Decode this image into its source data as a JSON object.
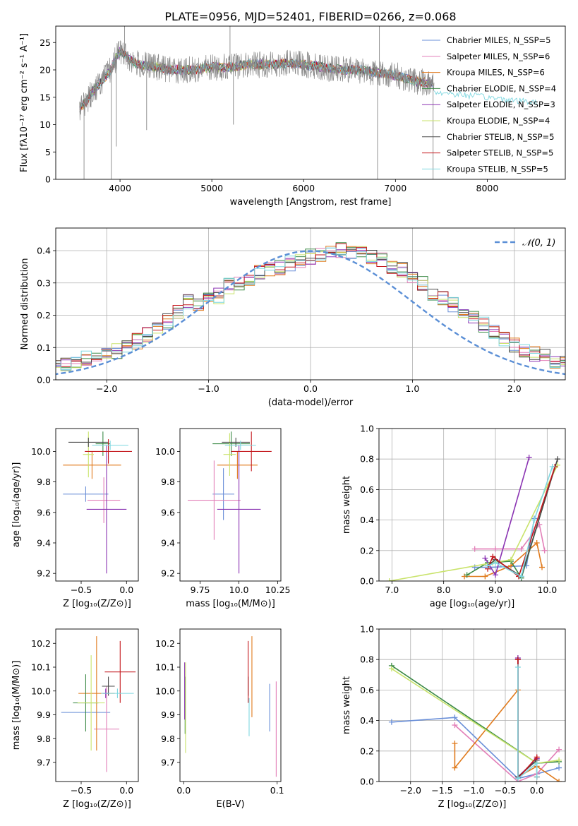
{
  "figure_title": "PLATE=0956, MJD=52401, FIBERID=0266, z=0.068",
  "colors": {
    "Chabrier MILES": "#6a8fd8",
    "Salpeter MILES": "#e27fb8",
    "Kroupa MILES": "#e07a1c",
    "Chabrier ELODIE": "#3b8a46",
    "Salpeter ELODIE": "#8b35b3",
    "Kroupa ELODIE": "#c9e36b",
    "Chabrier STELIB": "#4a4a4a",
    "Salpeter STELIB": "#c4171c",
    "Kroupa STELIB": "#7fd7e0",
    "data": "#888888",
    "normal": "#5b8fd6"
  },
  "chart_data": [
    {
      "id": "spectrum",
      "type": "line",
      "title": "PLATE=0956, MJD=52401, FIBERID=0266, z=0.068",
      "xlabel": "wavelength [Angstrom, rest frame]",
      "ylabel": "Flux [fλ10⁻¹⁷ erg cm⁻² s⁻¹ A⁻¹]",
      "xlim": [
        3300,
        8850
      ],
      "ylim": [
        0,
        28
      ],
      "xticks": [
        4000,
        5000,
        6000,
        7000,
        8000
      ],
      "yticks": [
        0,
        5,
        10,
        15,
        20,
        25
      ],
      "legend_position": "top-right",
      "legend": [
        "Chabrier MILES, N_SSP=5",
        "Salpeter MILES, N_SSP=6",
        "Kroupa MILES, N_SSP=6",
        "Chabrier ELODIE, N_SSP=4",
        "Salpeter ELODIE, N_SSP=3",
        "Kroupa ELODIE, N_SSP=4",
        "Chabrier STELIB, N_SSP=5",
        "Salpeter STELIB, N_SSP=5",
        "Kroupa STELIB, N_SSP=5"
      ],
      "continuum": {
        "x": [
          3560,
          3620,
          3700,
          3800,
          3900,
          3950,
          4000,
          4100,
          4200,
          4400,
          4600,
          4800,
          5000,
          5200,
          5400,
          5600,
          5800,
          6000,
          6200,
          6400,
          6600,
          6800,
          7000,
          7200,
          7400
        ],
        "y": [
          13,
          14,
          16,
          18,
          20,
          22,
          23.5,
          22,
          21,
          20.5,
          20,
          20,
          20.5,
          20.5,
          21,
          21,
          21.2,
          21,
          20.5,
          20,
          20,
          19.5,
          19,
          18,
          17.5
        ]
      },
      "spikes": [
        {
          "x": 3608,
          "y": 0
        },
        {
          "x": 3905,
          "y": 0
        },
        {
          "x": 3960,
          "y": 6
        },
        {
          "x": 4050,
          "y": 28
        },
        {
          "x": 4290,
          "y": 9
        },
        {
          "x": 5198,
          "y": 28
        },
        {
          "x": 5235,
          "y": 10
        },
        {
          "x": 6805,
          "y": 0
        },
        {
          "x": 6825,
          "y": 28
        },
        {
          "x": 7410,
          "y": 0
        }
      ]
    },
    {
      "id": "residuals",
      "type": "line",
      "xlabel": "(data-model)/error",
      "ylabel": "Normed distribution",
      "xlim": [
        -2.5,
        2.5
      ],
      "ylim": [
        0,
        0.47
      ],
      "xticks": [
        -2,
        -1,
        0,
        1,
        2
      ],
      "yticks": [
        0.0,
        0.1,
        0.2,
        0.3,
        0.4
      ],
      "grid": true,
      "legend_position": "top-right",
      "legend": [
        "𝒩(0, 1)"
      ],
      "bin_width": 0.1,
      "hist_values": [
        0.03,
        0.04,
        0.05,
        0.05,
        0.05,
        0.06,
        0.07,
        0.08,
        0.09,
        0.09,
        0.1,
        0.12,
        0.14,
        0.16,
        0.18,
        0.21,
        0.24,
        0.23,
        0.25,
        0.26,
        0.29,
        0.3,
        0.31,
        0.33,
        0.34,
        0.35,
        0.36,
        0.37,
        0.38,
        0.39,
        0.39,
        0.4,
        0.4,
        0.39,
        0.38,
        0.37,
        0.35,
        0.34,
        0.32,
        0.3,
        0.27,
        0.25,
        0.23,
        0.21,
        0.19,
        0.17,
        0.15,
        0.13,
        0.11,
        0.09,
        0.08,
        0.07,
        0.06,
        0.05,
        0.04,
        0.04,
        0.03
      ],
      "normal_curve": {
        "mu": 0,
        "sigma": 1
      }
    },
    {
      "id": "age_vs_Z",
      "type": "scatter",
      "xlabel": "Z [log₁₀(Z/Z⊙)]",
      "ylabel": "age  [log₁₀(age/yr)]",
      "xlim": [
        -0.78,
        0.13
      ],
      "ylim": [
        9.15,
        10.15
      ],
      "xticks": [
        -0.5,
        0.0
      ],
      "yticks": [
        9.2,
        9.4,
        9.6,
        9.8,
        10.0
      ],
      "points": [
        {
          "model": "Chabrier MILES",
          "x": -0.45,
          "y": 9.72,
          "xerr": 0.25,
          "yerr": 0.05
        },
        {
          "model": "Salpeter MILES",
          "x": -0.25,
          "y": 9.68,
          "xerr": 0.18,
          "yerr": 0.15
        },
        {
          "model": "Kroupa MILES",
          "x": -0.38,
          "y": 9.91,
          "xerr": 0.32,
          "yerr": 0.09
        },
        {
          "model": "Chabrier ELODIE",
          "x": -0.26,
          "y": 10.05,
          "xerr": 0.08,
          "yerr": 0.08
        },
        {
          "model": "Salpeter ELODIE",
          "x": -0.22,
          "y": 9.62,
          "xerr": 0.22,
          "yerr": 0.42
        },
        {
          "model": "Kroupa ELODIE",
          "x": -0.42,
          "y": 9.98,
          "xerr": 0.06,
          "yerr": 0.15
        },
        {
          "model": "Chabrier STELIB",
          "x": -0.42,
          "y": 10.06,
          "xerr": 0.22,
          "yerr": 0.03
        },
        {
          "model": "Salpeter STELIB",
          "x": -0.2,
          "y": 10.0,
          "xerr": 0.26,
          "yerr": 0.08
        },
        {
          "model": "Kroupa STELIB",
          "x": -0.18,
          "y": 10.04,
          "xerr": 0.2,
          "yerr": 0.03
        }
      ]
    },
    {
      "id": "age_vs_mass",
      "type": "scatter",
      "xlabel": "mass [log₁₀(M/M⊙)]",
      "ylabel": "",
      "xlim": [
        9.62,
        10.27
      ],
      "ylim": [
        9.15,
        10.15
      ],
      "xticks": [
        9.75,
        10.0,
        10.25
      ],
      "yticks": [
        9.2,
        9.4,
        9.6,
        9.8,
        10.0
      ],
      "points": [
        {
          "model": "Chabrier MILES",
          "x": 9.9,
          "y": 9.72,
          "xerr": 0.07,
          "yerr": 0.17
        },
        {
          "model": "Salpeter MILES",
          "x": 9.84,
          "y": 9.68,
          "xerr": 0.17,
          "yerr": 0.26
        },
        {
          "model": "Kroupa MILES",
          "x": 9.99,
          "y": 9.91,
          "xerr": 0.13,
          "yerr": 0.09
        },
        {
          "model": "Chabrier ELODIE",
          "x": 9.95,
          "y": 10.05,
          "xerr": 0.12,
          "yerr": 0.08
        },
        {
          "model": "Salpeter ELODIE",
          "x": 10.0,
          "y": 9.62,
          "xerr": 0.14,
          "yerr": 0.42
        },
        {
          "model": "Kroupa ELODIE",
          "x": 9.94,
          "y": 9.98,
          "xerr": 0.04,
          "yerr": 0.14
        },
        {
          "model": "Chabrier STELIB",
          "x": 9.98,
          "y": 10.06,
          "xerr": 0.09,
          "yerr": 0.03
        },
        {
          "model": "Salpeter STELIB",
          "x": 10.08,
          "y": 10.0,
          "xerr": 0.13,
          "yerr": 0.13
        },
        {
          "model": "Kroupa STELIB",
          "x": 10.01,
          "y": 10.04,
          "xerr": 0.1,
          "yerr": 0.03
        }
      ]
    },
    {
      "id": "massweight_vs_age",
      "type": "line",
      "xlabel": "age  [log₁₀(age/yr)]",
      "ylabel": "mass weight",
      "xlim": [
        6.75,
        10.35
      ],
      "ylim": [
        0,
        1
      ],
      "xticks": [
        7,
        8,
        9,
        10
      ],
      "yticks": [
        0.0,
        0.2,
        0.4,
        0.6,
        0.8,
        1.0
      ],
      "grid": true,
      "series": [
        {
          "model": "Chabrier MILES",
          "x": [
            8.6,
            8.9,
            9.6,
            9.75
          ],
          "y": [
            0.09,
            0.09,
            0.1,
            0.41
          ]
        },
        {
          "model": "Salpeter MILES",
          "x": [
            8.6,
            9.0,
            9.5,
            9.85,
            9.95
          ],
          "y": [
            0.21,
            0.21,
            0.21,
            0.37,
            0.2
          ]
        },
        {
          "model": "Kroupa MILES",
          "x": [
            8.4,
            8.8,
            9.3,
            9.8,
            9.9
          ],
          "y": [
            0.03,
            0.03,
            0.1,
            0.25,
            0.09
          ]
        },
        {
          "model": "Chabrier ELODIE",
          "x": [
            8.45,
            8.85,
            9.3,
            9.5,
            10.15
          ],
          "y": [
            0.04,
            0.12,
            0.13,
            0.02,
            0.75
          ]
        },
        {
          "model": "Salpeter ELODIE",
          "x": [
            8.8,
            9.0,
            9.65
          ],
          "y": [
            0.15,
            0.04,
            0.81
          ]
        },
        {
          "model": "Kroupa ELODIE",
          "x": [
            6.95,
            8.95,
            9.3,
            10.2
          ],
          "y": [
            0.0,
            0.12,
            0.14,
            0.76
          ]
        },
        {
          "model": "Chabrier STELIB",
          "x": [
            8.85,
            9.0,
            9.5,
            10.2
          ],
          "y": [
            0.1,
            0.14,
            0.03,
            0.8
          ]
        },
        {
          "model": "Salpeter STELIB",
          "x": [
            8.85,
            8.95,
            9.45,
            10.15
          ],
          "y": [
            0.08,
            0.16,
            0.03,
            0.75
          ]
        },
        {
          "model": "Kroupa STELIB",
          "x": [
            8.85,
            9.0,
            9.5,
            9.75,
            10.1
          ],
          "y": [
            0.1,
            0.12,
            0.03,
            0.4,
            0.75
          ]
        }
      ]
    },
    {
      "id": "mass_vs_Z",
      "type": "scatter",
      "xlabel": "Z [log₁₀(Z/Z⊙)]",
      "ylabel": "mass [log₁₀(M/M⊙)]",
      "xlim": [
        -0.78,
        0.13
      ],
      "ylim": [
        9.62,
        10.26
      ],
      "xticks": [
        -0.5,
        0.0
      ],
      "yticks": [
        9.7,
        9.8,
        9.9,
        10.0,
        10.1,
        10.2
      ],
      "points": [
        {
          "model": "Chabrier MILES",
          "x": -0.45,
          "y": 9.91,
          "xerr": 0.27,
          "yerr": 0.0
        },
        {
          "model": "Salpeter MILES",
          "x": -0.22,
          "y": 9.84,
          "xerr": 0.14,
          "yerr": 0.18
        },
        {
          "model": "Kroupa MILES",
          "x": -0.33,
          "y": 9.99,
          "xerr": 0.2,
          "yerr": 0.24
        },
        {
          "model": "Chabrier ELODIE",
          "x": -0.45,
          "y": 9.95,
          "xerr": 0.14,
          "yerr": 0.12
        },
        {
          "model": "Salpeter ELODIE",
          "x": -0.23,
          "y": 9.99,
          "xerr": 0.03,
          "yerr": 0.02
        },
        {
          "model": "Kroupa ELODIE",
          "x": -0.39,
          "y": 9.95,
          "xerr": 0.15,
          "yerr": 0.2
        },
        {
          "model": "Chabrier STELIB",
          "x": -0.2,
          "y": 10.02,
          "xerr": 0.07,
          "yerr": 0.04
        },
        {
          "model": "Salpeter STELIB",
          "x": -0.07,
          "y": 10.08,
          "xerr": 0.17,
          "yerr": 0.13
        },
        {
          "model": "Kroupa STELIB",
          "x": -0.1,
          "y": 9.99,
          "xerr": 0.18,
          "yerr": 0.02
        }
      ]
    },
    {
      "id": "mass_vs_ebv",
      "type": "scatter",
      "xlabel": "E(B-V)",
      "ylabel": "",
      "xlim": [
        -0.004,
        0.104
      ],
      "ylim": [
        9.62,
        10.26
      ],
      "xticks": [
        0.0,
        0.1
      ],
      "yticks": [
        9.7,
        9.8,
        9.9,
        10.0,
        10.1,
        10.2
      ],
      "points": [
        {
          "model": "Chabrier MILES",
          "x": 0.092,
          "y": 9.93,
          "xerr": 0,
          "yerr": 0.1
        },
        {
          "model": "Salpeter MILES",
          "x": 0.099,
          "y": 9.84,
          "xerr": 0,
          "yerr": 0.2
        },
        {
          "model": "Kroupa MILES",
          "x": 0.073,
          "y": 10.06,
          "xerr": 0,
          "yerr": 0.17
        },
        {
          "model": "Chabrier ELODIE",
          "x": 0.0015,
          "y": 9.94,
          "xerr": 0,
          "yerr": 0.12
        },
        {
          "model": "Salpeter ELODIE",
          "x": 0.001,
          "y": 10.0,
          "xerr": 0,
          "yerr": 0.12
        },
        {
          "model": "Kroupa ELODIE",
          "x": 0.002,
          "y": 9.93,
          "xerr": 0,
          "yerr": 0.19
        },
        {
          "model": "Chabrier STELIB",
          "x": 0.069,
          "y": 10.02,
          "xerr": 0,
          "yerr": 0.04
        },
        {
          "model": "Salpeter STELIB",
          "x": 0.069,
          "y": 10.08,
          "xerr": 0,
          "yerr": 0.13
        },
        {
          "model": "Kroupa STELIB",
          "x": 0.07,
          "y": 9.89,
          "xerr": 0,
          "yerr": 0.08
        }
      ]
    },
    {
      "id": "massweight_vs_Z",
      "type": "line",
      "xlabel": "Z [log₁₀(Z/Z⊙)]",
      "ylabel": "mass weight",
      "xlim": [
        -2.5,
        0.45
      ],
      "ylim": [
        0,
        1
      ],
      "xticks": [
        -2.0,
        -1.5,
        -1.0,
        -0.5,
        0.0
      ],
      "yticks": [
        0.0,
        0.2,
        0.4,
        0.6,
        0.8,
        1.0
      ],
      "grid": true,
      "series": [
        {
          "model": "Chabrier MILES",
          "x": [
            -2.3,
            -1.3,
            -0.3,
            0.0,
            0.35
          ],
          "y": [
            0.39,
            0.42,
            0.02,
            0.05,
            0.09
          ]
        },
        {
          "model": "Salpeter MILES",
          "x": [
            -1.3,
            -0.3,
            0.0,
            0.35
          ],
          "y": [
            0.37,
            0.0,
            0.05,
            0.21
          ]
        },
        {
          "model": "Kroupa MILES",
          "x": [
            -1.3,
            -1.3,
            -0.3,
            -0.3,
            0.0,
            0.35
          ],
          "y": [
            0.25,
            0.09,
            0.6,
            0.03,
            0.1,
            0.0
          ]
        },
        {
          "model": "Chabrier ELODIE",
          "x": [
            -2.3,
            0.0,
            0.35
          ],
          "y": [
            0.76,
            0.12,
            0.13
          ]
        },
        {
          "model": "Salpeter ELODIE",
          "x": [
            -0.3,
            -0.3,
            0.0
          ],
          "y": [
            0.81,
            0.03,
            0.15
          ]
        },
        {
          "model": "Kroupa ELODIE",
          "x": [
            -2.3,
            0.0,
            0.35
          ],
          "y": [
            0.74,
            0.12,
            0.14
          ]
        },
        {
          "model": "Chabrier STELIB",
          "x": [
            -0.3,
            -0.3,
            0.0,
            0.0
          ],
          "y": [
            0.8,
            0.03,
            0.14,
            0.03
          ]
        },
        {
          "model": "Salpeter STELIB",
          "x": [
            -0.3,
            -0.3,
            0.0,
            0.0
          ],
          "y": [
            0.8,
            0.02,
            0.16,
            0.03
          ]
        },
        {
          "model": "Kroupa STELIB",
          "x": [
            -0.3,
            -0.3,
            0.0,
            0.0
          ],
          "y": [
            0.75,
            0.02,
            0.12,
            0.03
          ]
        }
      ]
    }
  ]
}
